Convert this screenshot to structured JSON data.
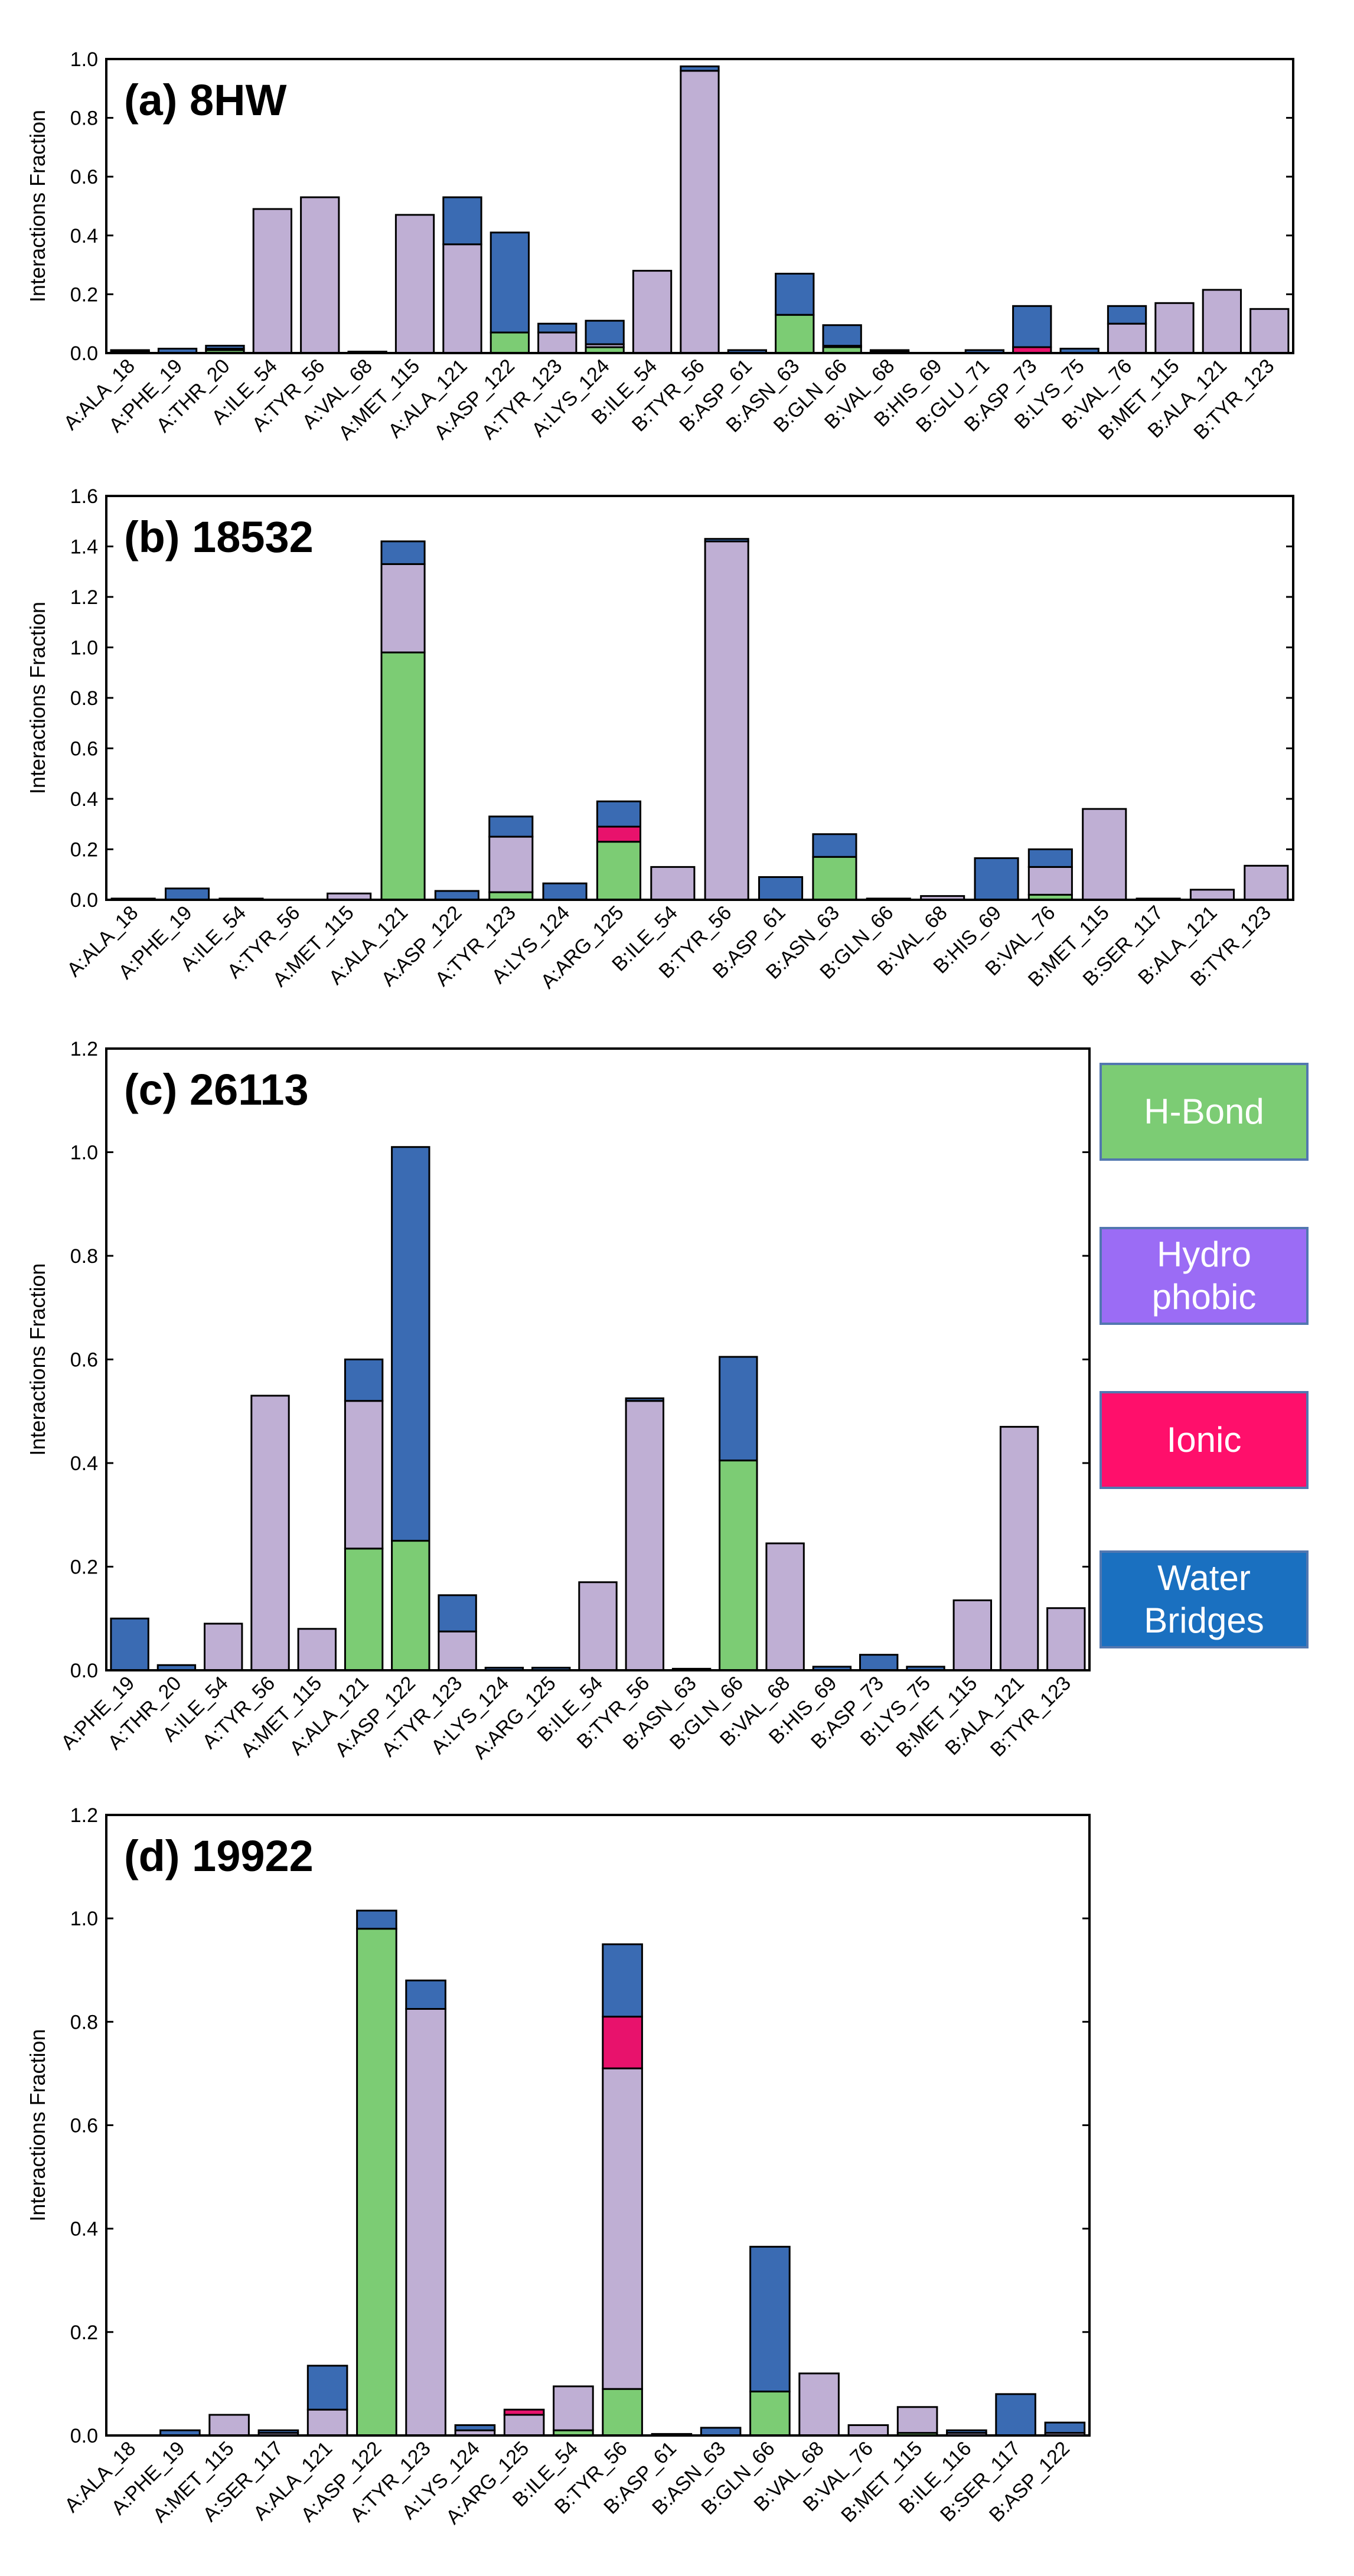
{
  "colors": {
    "H-Bond": "#7ccc74",
    "Hydrophobic": "#bfafd4",
    "Ionic": "#e8126c",
    "Water Bridges": "#3a6bb3"
  },
  "legend": {
    "items": [
      {
        "key": "H-Bond",
        "lines": [
          "H-Bond"
        ],
        "color": "#7ccc74"
      },
      {
        "key": "Hydrophobic",
        "lines": [
          "Hydro",
          "phobic"
        ],
        "color": "#9b6cf5"
      },
      {
        "key": "Ionic",
        "lines": [
          "Ionic"
        ],
        "color": "#ff0f6b"
      },
      {
        "key": "Water Bridges",
        "lines": [
          "Water",
          "Bridges"
        ],
        "color": "#1a70c0"
      }
    ]
  },
  "chart_data": [
    {
      "type": "bar",
      "stacked": true,
      "title": "(a) 8HW",
      "ylabel": "Interactions Fraction",
      "ylim": [
        0,
        1.0
      ],
      "yticks": [
        "0.0",
        "0.2",
        "0.4",
        "0.6",
        "0.8",
        "1.0"
      ],
      "categories": [
        "A:ALA_18",
        "A:PHE_19",
        "A:THR_20",
        "A:ILE_54",
        "A:TYR_56",
        "A:VAL_68",
        "A:MET_115",
        "A:ALA_121",
        "A:ASP_122",
        "A:TYR_123",
        "A:LYS_124",
        "B:ILE_54",
        "B:TYR_56",
        "B:ASP_61",
        "B:ASN_63",
        "B:GLN_66",
        "B:VAL_68",
        "B:HIS_69",
        "B:GLU_71",
        "B:ASP_73",
        "B:LYS_75",
        "B:VAL_76",
        "B:MET_115",
        "B:ALA_121",
        "B:TYR_123"
      ],
      "series": [
        {
          "name": "H-Bond",
          "values": [
            0,
            0,
            0.01,
            0,
            0,
            0,
            0,
            0,
            0.07,
            0,
            0.02,
            0,
            0,
            0,
            0.13,
            0.02,
            0,
            0,
            0,
            0,
            0,
            0,
            0,
            0,
            0
          ]
        },
        {
          "name": "Hydrophobic",
          "values": [
            0.005,
            0,
            0.005,
            0.49,
            0.53,
            0.005,
            0.47,
            0.37,
            0,
            0.07,
            0.01,
            0.28,
            0.96,
            0,
            0,
            0.005,
            0.005,
            0,
            0,
            0,
            0,
            0.1,
            0.17,
            0.215,
            0.15
          ]
        },
        {
          "name": "Ionic",
          "values": [
            0,
            0,
            0,
            0,
            0,
            0,
            0,
            0,
            0,
            0,
            0,
            0,
            0,
            0,
            0,
            0,
            0,
            0,
            0,
            0.02,
            0,
            0,
            0,
            0,
            0
          ]
        },
        {
          "name": "Water Bridges",
          "values": [
            0.005,
            0.015,
            0.01,
            0,
            0,
            0,
            0,
            0.16,
            0.34,
            0.03,
            0.08,
            0,
            0.015,
            0.01,
            0.14,
            0.07,
            0.005,
            0,
            0.01,
            0.14,
            0.015,
            0.06,
            0,
            0,
            0
          ]
        }
      ]
    },
    {
      "type": "bar",
      "stacked": true,
      "title": "(b) 18532",
      "ylabel": "Interactions Fraction",
      "ylim": [
        0,
        1.6
      ],
      "yticks": [
        "0.0",
        "0.2",
        "0.4",
        "0.6",
        "0.8",
        "1.0",
        "1.2",
        "1.4",
        "1.6"
      ],
      "categories": [
        "A:ALA_18",
        "A:PHE_19",
        "A:ILE_54",
        "A:TYR_56",
        "A:MET_115",
        "A:ALA_121",
        "A:ASP_122",
        "A:TYR_123",
        "A:LYS_124",
        "A:ARG_125",
        "B:ILE_54",
        "B:TYR_56",
        "B:ASP_61",
        "B:ASN_63",
        "B:GLN_66",
        "B:VAL_68",
        "B:HIS_69",
        "B:VAL_76",
        "B:MET_115",
        "B:SER_117",
        "B:ALA_121",
        "B:TYR_123"
      ],
      "series": [
        {
          "name": "H-Bond",
          "values": [
            0,
            0,
            0,
            0,
            0,
            0.98,
            0,
            0.03,
            0,
            0.23,
            0,
            0,
            0,
            0.17,
            0,
            0,
            0,
            0.02,
            0,
            0,
            0,
            0
          ]
        },
        {
          "name": "Hydrophobic",
          "values": [
            0.005,
            0,
            0.005,
            0,
            0.025,
            0.35,
            0,
            0.22,
            0,
            0,
            0.13,
            1.42,
            0,
            0,
            0.005,
            0.015,
            0,
            0.11,
            0.36,
            0.005,
            0.04,
            0.135
          ]
        },
        {
          "name": "Ionic",
          "values": [
            0,
            0,
            0,
            0,
            0,
            0,
            0,
            0,
            0,
            0.06,
            0,
            0,
            0,
            0,
            0,
            0,
            0,
            0,
            0,
            0,
            0,
            0
          ]
        },
        {
          "name": "Water Bridges",
          "values": [
            0,
            0.045,
            0,
            0,
            0,
            0.09,
            0.035,
            0.08,
            0.065,
            0.1,
            0,
            0.01,
            0.09,
            0.09,
            0,
            0,
            0.165,
            0.07,
            0,
            0,
            0,
            0
          ]
        }
      ]
    },
    {
      "type": "bar",
      "stacked": true,
      "title": "(c) 26113",
      "ylabel": "Interactions Fraction",
      "ylim": [
        0,
        1.2
      ],
      "yticks": [
        "0.0",
        "0.2",
        "0.4",
        "0.6",
        "0.8",
        "1.0",
        "1.2"
      ],
      "categories": [
        "A:PHE_19",
        "A:THR_20",
        "A:ILE_54",
        "A:TYR_56",
        "A:MET_115",
        "A:ALA_121",
        "A:ASP_122",
        "A:TYR_123",
        "A:LYS_124",
        "A:ARG_125",
        "B:ILE_54",
        "B:TYR_56",
        "B:ASN_63",
        "B:GLN_66",
        "B:VAL_68",
        "B:HIS_69",
        "B:ASP_73",
        "B:LYS_75",
        "B:MET_115",
        "B:ALA_121",
        "B:TYR_123"
      ],
      "series": [
        {
          "name": "H-Bond",
          "values": [
            0,
            0,
            0,
            0,
            0,
            0.235,
            0.25,
            0,
            0,
            0,
            0,
            0,
            0,
            0.405,
            0,
            0,
            0,
            0,
            0,
            0,
            0
          ]
        },
        {
          "name": "Hydrophobic",
          "values": [
            0,
            0,
            0.09,
            0.53,
            0.08,
            0.285,
            0,
            0.075,
            0,
            0,
            0.17,
            0.52,
            0,
            0,
            0.245,
            0,
            0,
            0,
            0.135,
            0.47,
            0.12
          ]
        },
        {
          "name": "Ionic",
          "values": [
            0,
            0,
            0,
            0,
            0,
            0,
            0,
            0,
            0,
            0,
            0,
            0,
            0,
            0,
            0,
            0,
            0,
            0,
            0,
            0,
            0
          ]
        },
        {
          "name": "Water Bridges",
          "values": [
            0.1,
            0.01,
            0,
            0,
            0,
            0.08,
            0.76,
            0.07,
            0.005,
            0.005,
            0,
            0.005,
            0.003,
            0.2,
            0,
            0.007,
            0.03,
            0.007,
            0,
            0,
            0
          ]
        }
      ]
    },
    {
      "type": "bar",
      "stacked": true,
      "title": "(d) 19922",
      "ylabel": "Interactions Fraction",
      "ylim": [
        0,
        1.2
      ],
      "yticks": [
        "0.0",
        "0.2",
        "0.4",
        "0.6",
        "0.8",
        "1.0",
        "1.2"
      ],
      "categories": [
        "A:ALA_18",
        "A:PHE_19",
        "A:MET_115",
        "A:SER_117",
        "A:ALA_121",
        "A:ASP_122",
        "A:TYR_123",
        "A:LYS_124",
        "A:ARG_125",
        "B:ILE_54",
        "B:TYR_56",
        "B:ASP_61",
        "B:ASN_63",
        "B:GLN_66",
        "B:VAL_68",
        "B:VAL_76",
        "B:MET_115",
        "B:ILE_116",
        "B:SER_117",
        "B:ASP_122"
      ],
      "series": [
        {
          "name": "H-Bond",
          "values": [
            0,
            0,
            0,
            0,
            0,
            0.98,
            0,
            0,
            0,
            0.01,
            0.09,
            0,
            0,
            0.085,
            0,
            0,
            0.005,
            0,
            0,
            0
          ]
        },
        {
          "name": "Hydrophobic",
          "values": [
            0,
            0,
            0.04,
            0.005,
            0.05,
            0,
            0.825,
            0.01,
            0.04,
            0.085,
            0.62,
            0,
            0,
            0,
            0.12,
            0.02,
            0.05,
            0.005,
            0,
            0.005
          ]
        },
        {
          "name": "Ionic",
          "values": [
            0,
            0,
            0,
            0,
            0,
            0,
            0,
            0,
            0.01,
            0,
            0.1,
            0,
            0,
            0,
            0,
            0,
            0,
            0,
            0,
            0
          ]
        },
        {
          "name": "Water Bridges",
          "values": [
            0,
            0.01,
            0,
            0.005,
            0.085,
            0.035,
            0.055,
            0.01,
            0,
            0,
            0.14,
            0.003,
            0.015,
            0.28,
            0,
            0,
            0,
            0.005,
            0.08,
            0.02
          ]
        }
      ]
    }
  ]
}
